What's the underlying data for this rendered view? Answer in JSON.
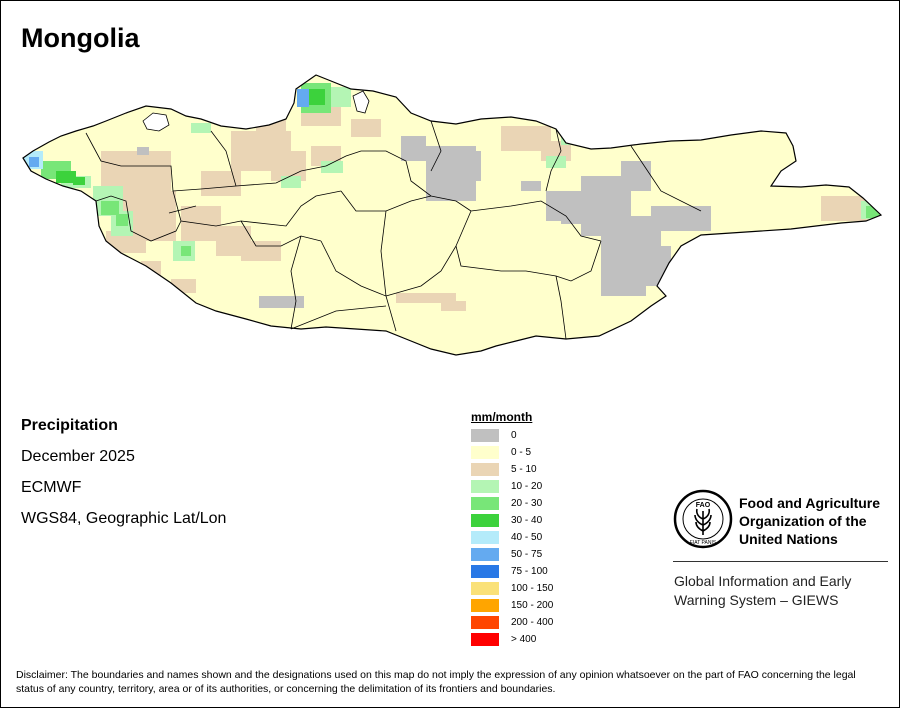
{
  "title": "Mongolia",
  "info": {
    "variable": "Precipitation",
    "period": "December 2025",
    "source": "ECMWF",
    "projection": "WGS84, Geographic Lat/Lon"
  },
  "legend": {
    "title": "mm/month",
    "classes": [
      {
        "label": "0",
        "color": "#c0c0c0"
      },
      {
        "label": "0 - 5",
        "color": "#ffffcc"
      },
      {
        "label": "5 - 10",
        "color": "#ead5b5"
      },
      {
        "label": "10 - 20",
        "color": "#b4f5b4"
      },
      {
        "label": "20 - 30",
        "color": "#78e678"
      },
      {
        "label": "30 - 40",
        "color": "#3cd23c"
      },
      {
        "label": "40 - 50",
        "color": "#b4ebfa"
      },
      {
        "label": "50 - 75",
        "color": "#64aaf0"
      },
      {
        "label": "75 - 100",
        "color": "#2878e6"
      },
      {
        "label": "100 - 150",
        "color": "#fae178"
      },
      {
        "label": "150 - 200",
        "color": "#ffa500"
      },
      {
        "label": "200 - 400",
        "color": "#ff4600"
      },
      {
        "label": "> 400",
        "color": "#ff0000"
      }
    ]
  },
  "organization": {
    "name_lines": [
      "Food and Agriculture",
      "Organization of the",
      "United Nations"
    ],
    "system_lines": [
      "Global Information and Early",
      "Warning System – GIEWS"
    ],
    "logo_text": "FAO",
    "logo_motto": "FIAT PANIS"
  },
  "disclaimer": "Disclaimer: The boundaries and names shown and the designations used on this map do not imply the expression of any opinion whatsoever on the part of FAO concerning the legal status of any country, territory, area or of its authorities, or concerning the delimitation of its frontiers and boundaries."
}
